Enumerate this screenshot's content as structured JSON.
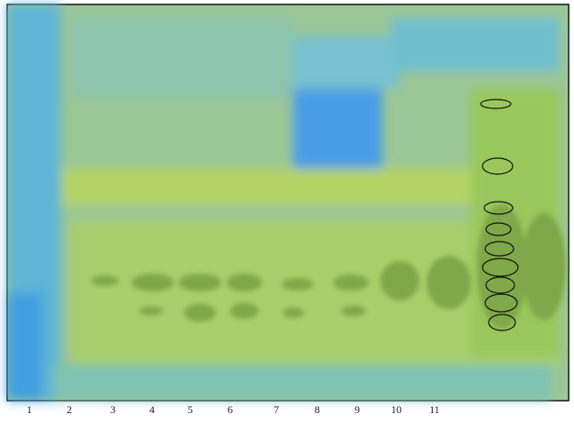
{
  "lanes": {
    "labels": [
      "1",
      "2",
      "3",
      "4",
      "5",
      "6",
      "7",
      "8",
      "9",
      "10",
      "11"
    ]
  }
}
